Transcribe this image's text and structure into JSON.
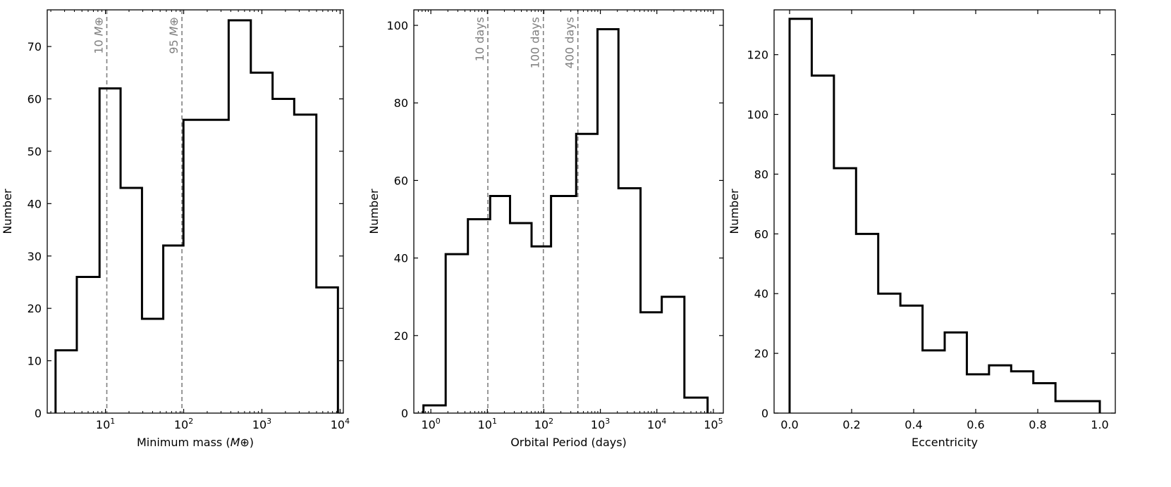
{
  "chart_data": [
    {
      "type": "histogram",
      "xlabel": "Minimum mass (M⊕)",
      "ylabel": "Number",
      "xscale": "log",
      "xlim": [
        1.8,
        11000
      ],
      "ylim": [
        0,
        77
      ],
      "yticks": [
        0,
        10,
        20,
        30,
        40,
        50,
        60,
        70
      ],
      "xticks": [
        {
          "value": 10,
          "base": "10",
          "exp": "1"
        },
        {
          "value": 100,
          "base": "10",
          "exp": "2"
        },
        {
          "value": 1000,
          "base": "10",
          "exp": "3"
        },
        {
          "value": 10000,
          "base": "10",
          "exp": "4"
        }
      ],
      "bin_edges": [
        2.3,
        4.3,
        8.4,
        15.6,
        29.3,
        54.8,
        99.3,
        376,
        722,
        1370,
        2590,
        4970,
        9380
      ],
      "counts": [
        12,
        26,
        62,
        43,
        18,
        32,
        56,
        75,
        65,
        60,
        57,
        24
      ],
      "reference_lines": [
        {
          "x": 10.4,
          "label": "10 M⊕"
        },
        {
          "x": 95,
          "label": "95 M⊕"
        }
      ],
      "grid": false
    },
    {
      "type": "histogram",
      "xlabel": "Orbital Period (days)",
      "ylabel": "Number",
      "xscale": "log",
      "xlim": [
        0.5,
        150000
      ],
      "ylim": [
        0,
        104
      ],
      "yticks": [
        0,
        20,
        40,
        60,
        80,
        100
      ],
      "xticks": [
        {
          "value": 1,
          "base": "10",
          "exp": "0"
        },
        {
          "value": 10,
          "base": "10",
          "exp": "1"
        },
        {
          "value": 100,
          "base": "10",
          "exp": "2"
        },
        {
          "value": 1000,
          "base": "10",
          "exp": "3"
        },
        {
          "value": 10000,
          "base": "10",
          "exp": "4"
        },
        {
          "value": 100000,
          "base": "10",
          "exp": "5"
        }
      ],
      "bin_edges": [
        0.74,
        1.83,
        4.53,
        11.2,
        25.2,
        60.6,
        134,
        373,
        890,
        2090,
        5140,
        12200,
        30700,
        79000
      ],
      "counts": [
        2,
        41,
        50,
        56,
        49,
        43,
        56,
        72,
        99,
        58,
        26,
        30,
        4
      ],
      "reference_lines": [
        {
          "x": 10.2,
          "label": "10 days"
        },
        {
          "x": 98,
          "label": "100 days"
        },
        {
          "x": 400,
          "label": "400 days"
        }
      ],
      "grid": false
    },
    {
      "type": "histogram",
      "xlabel": "Eccentricity",
      "ylabel": "Number",
      "xscale": "linear",
      "xlim": [
        -0.05,
        1.05
      ],
      "ylim": [
        0,
        135
      ],
      "yticks": [
        0,
        20,
        40,
        60,
        80,
        100,
        120
      ],
      "xticks": [
        {
          "value": 0.0,
          "label": "0.0"
        },
        {
          "value": 0.2,
          "label": "0.2"
        },
        {
          "value": 0.4,
          "label": "0.4"
        },
        {
          "value": 0.6,
          "label": "0.6"
        },
        {
          "value": 0.8,
          "label": "0.8"
        },
        {
          "value": 1.0,
          "label": "1.0"
        }
      ],
      "bin_edges": [
        0.0,
        0.0714,
        0.1429,
        0.2143,
        0.2857,
        0.3571,
        0.4286,
        0.5,
        0.5714,
        0.6429,
        0.7143,
        0.7857,
        0.8571,
        1.0
      ],
      "counts": [
        132,
        113,
        82,
        60,
        40,
        36,
        21,
        27,
        13,
        16,
        14,
        10,
        4
      ],
      "reference_lines": [],
      "grid": false
    }
  ]
}
